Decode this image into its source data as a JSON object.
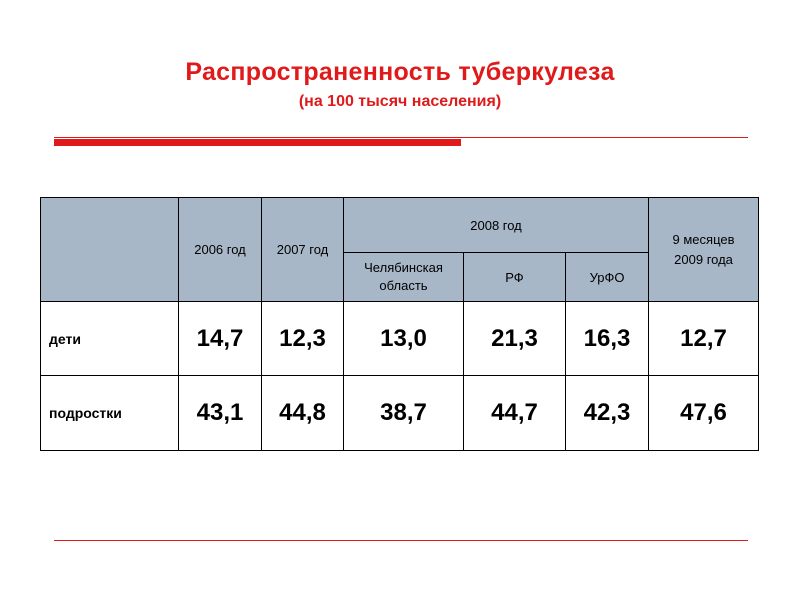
{
  "title": "Распространенность туберкулеза",
  "subtitle": "(на 100 тысяч населения)",
  "colors": {
    "accent": "#e01a1a",
    "header_bg": "#a7b7c8",
    "text": "#000000"
  },
  "table": {
    "headers": {
      "col_2006": "2006 год",
      "col_2007": "2007 год",
      "col_2008": "2008 год",
      "col_2008_sub": [
        "Челябинская область",
        "РФ",
        "УрФО"
      ],
      "col_2009": "9 месяцев 2009 года"
    },
    "rows": [
      {
        "label": "дети",
        "values": [
          "14,7",
          "12,3",
          "13,0",
          "21,3",
          "16,3",
          "12,7"
        ]
      },
      {
        "label": "подростки",
        "values": [
          "43,1",
          "44,8",
          "38,7",
          "44,7",
          "42,3",
          "47,6"
        ]
      }
    ]
  }
}
